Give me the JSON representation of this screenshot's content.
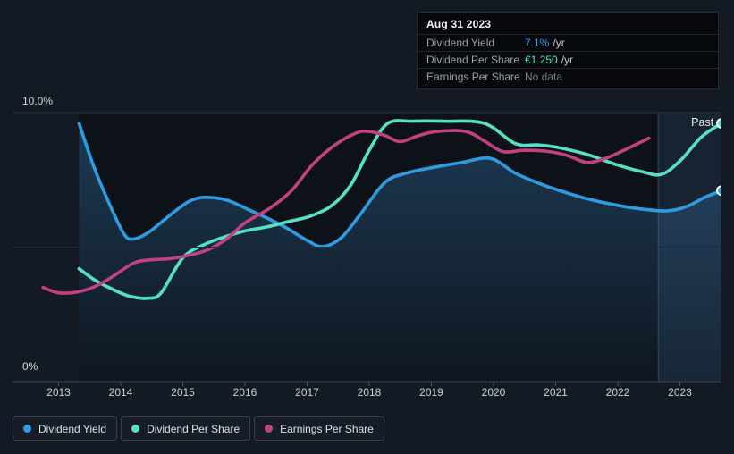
{
  "page": {
    "background": "#141a24"
  },
  "tooltip": {
    "date": "Aug 31 2023",
    "rows": [
      {
        "label": "Dividend Yield",
        "value": "7.1%",
        "suffix": "/yr",
        "value_color": "#2f9be0"
      },
      {
        "label": "Dividend Per Share",
        "value": "€1.250",
        "suffix": "/yr",
        "value_color": "#55e2c4"
      },
      {
        "label": "Earnings Per Share",
        "value": "No data",
        "suffix": "",
        "value_color": "#767d87"
      }
    ]
  },
  "chart": {
    "past_label": "Past",
    "y_axis": {
      "top_label": "10.0%",
      "bottom_label": "0%"
    }
  },
  "legend": {
    "items": [
      {
        "label": "Dividend Yield",
        "color": "#2f9be0"
      },
      {
        "label": "Dividend Per Share",
        "color": "#55e2c4"
      },
      {
        "label": "Earnings Per Share",
        "color": "#c2417f"
      }
    ]
  },
  "chart_data": {
    "type": "line",
    "title": "Dividend history (past)",
    "x_ticks": [
      2013,
      2014,
      2015,
      2016,
      2017,
      2018,
      2019,
      2020,
      2021,
      2022,
      2023
    ],
    "ylim": [
      0,
      10
    ],
    "y_unit": "%",
    "y_gridlines": [
      0,
      5,
      10
    ],
    "past_divider_year": 2022.65,
    "past_region_end": 2023.67,
    "area_gradient": [
      "rgba(58,134,200,0.34)",
      "rgba(58,134,200,0.04)"
    ],
    "past_band_fill": "rgba(96,156,219,0.13)",
    "past_band_edge": "rgba(148,186,228,0.25)",
    "plot_bg": "#0d1219",
    "series": [
      {
        "name": "Dividend Yield",
        "color": "#2f9be0",
        "area": true,
        "end_marker": true,
        "points": [
          [
            2013.33,
            9.6
          ],
          [
            2013.55,
            8.1
          ],
          [
            2013.8,
            6.7
          ],
          [
            2014.05,
            5.5
          ],
          [
            2014.2,
            5.3
          ],
          [
            2014.45,
            5.55
          ],
          [
            2014.8,
            6.2
          ],
          [
            2015.1,
            6.7
          ],
          [
            2015.35,
            6.85
          ],
          [
            2015.7,
            6.75
          ],
          [
            2016.1,
            6.35
          ],
          [
            2016.6,
            5.8
          ],
          [
            2017.0,
            5.25
          ],
          [
            2017.25,
            5.02
          ],
          [
            2017.55,
            5.35
          ],
          [
            2017.85,
            6.2
          ],
          [
            2018.25,
            7.4
          ],
          [
            2018.6,
            7.75
          ],
          [
            2019.0,
            7.95
          ],
          [
            2019.5,
            8.15
          ],
          [
            2019.95,
            8.3
          ],
          [
            2020.35,
            7.75
          ],
          [
            2020.7,
            7.4
          ],
          [
            2021.0,
            7.15
          ],
          [
            2021.5,
            6.8
          ],
          [
            2022.0,
            6.55
          ],
          [
            2022.45,
            6.4
          ],
          [
            2022.8,
            6.35
          ],
          [
            2023.1,
            6.5
          ],
          [
            2023.4,
            6.85
          ],
          [
            2023.67,
            7.1
          ]
        ]
      },
      {
        "name": "Dividend Per Share",
        "color": "#55e2c4",
        "area": false,
        "end_marker": true,
        "points": [
          [
            2013.33,
            4.2
          ],
          [
            2013.6,
            3.75
          ],
          [
            2013.9,
            3.4
          ],
          [
            2014.15,
            3.17
          ],
          [
            2014.45,
            3.1
          ],
          [
            2014.65,
            3.3
          ],
          [
            2015.0,
            4.6
          ],
          [
            2015.35,
            5.1
          ],
          [
            2015.7,
            5.4
          ],
          [
            2016.0,
            5.6
          ],
          [
            2016.35,
            5.75
          ],
          [
            2016.7,
            5.95
          ],
          [
            2017.05,
            6.15
          ],
          [
            2017.4,
            6.55
          ],
          [
            2017.7,
            7.3
          ],
          [
            2018.0,
            8.6
          ],
          [
            2018.3,
            9.6
          ],
          [
            2018.7,
            9.68
          ],
          [
            2019.2,
            9.68
          ],
          [
            2019.85,
            9.6
          ],
          [
            2020.35,
            8.85
          ],
          [
            2020.7,
            8.8
          ],
          [
            2021.0,
            8.72
          ],
          [
            2021.5,
            8.45
          ],
          [
            2022.0,
            8.05
          ],
          [
            2022.4,
            7.8
          ],
          [
            2022.7,
            7.7
          ],
          [
            2023.0,
            8.2
          ],
          [
            2023.35,
            9.1
          ],
          [
            2023.67,
            9.6
          ]
        ]
      },
      {
        "name": "Earnings Per Share",
        "color": "#c2417f",
        "area": false,
        "end_marker": false,
        "points": [
          [
            2012.75,
            3.5
          ],
          [
            2013.0,
            3.3
          ],
          [
            2013.3,
            3.33
          ],
          [
            2013.6,
            3.55
          ],
          [
            2013.9,
            3.95
          ],
          [
            2014.2,
            4.4
          ],
          [
            2014.45,
            4.52
          ],
          [
            2014.8,
            4.57
          ],
          [
            2015.1,
            4.7
          ],
          [
            2015.4,
            4.9
          ],
          [
            2015.7,
            5.3
          ],
          [
            2016.0,
            5.9
          ],
          [
            2016.4,
            6.45
          ],
          [
            2016.75,
            7.1
          ],
          [
            2017.1,
            8.1
          ],
          [
            2017.45,
            8.8
          ],
          [
            2017.8,
            9.25
          ],
          [
            2018.0,
            9.3
          ],
          [
            2018.25,
            9.15
          ],
          [
            2018.5,
            8.92
          ],
          [
            2018.8,
            9.15
          ],
          [
            2019.1,
            9.3
          ],
          [
            2019.55,
            9.3
          ],
          [
            2019.85,
            8.95
          ],
          [
            2020.15,
            8.55
          ],
          [
            2020.5,
            8.6
          ],
          [
            2020.9,
            8.55
          ],
          [
            2021.2,
            8.4
          ],
          [
            2021.5,
            8.15
          ],
          [
            2021.8,
            8.3
          ],
          [
            2022.1,
            8.6
          ],
          [
            2022.5,
            9.05
          ]
        ]
      }
    ]
  }
}
